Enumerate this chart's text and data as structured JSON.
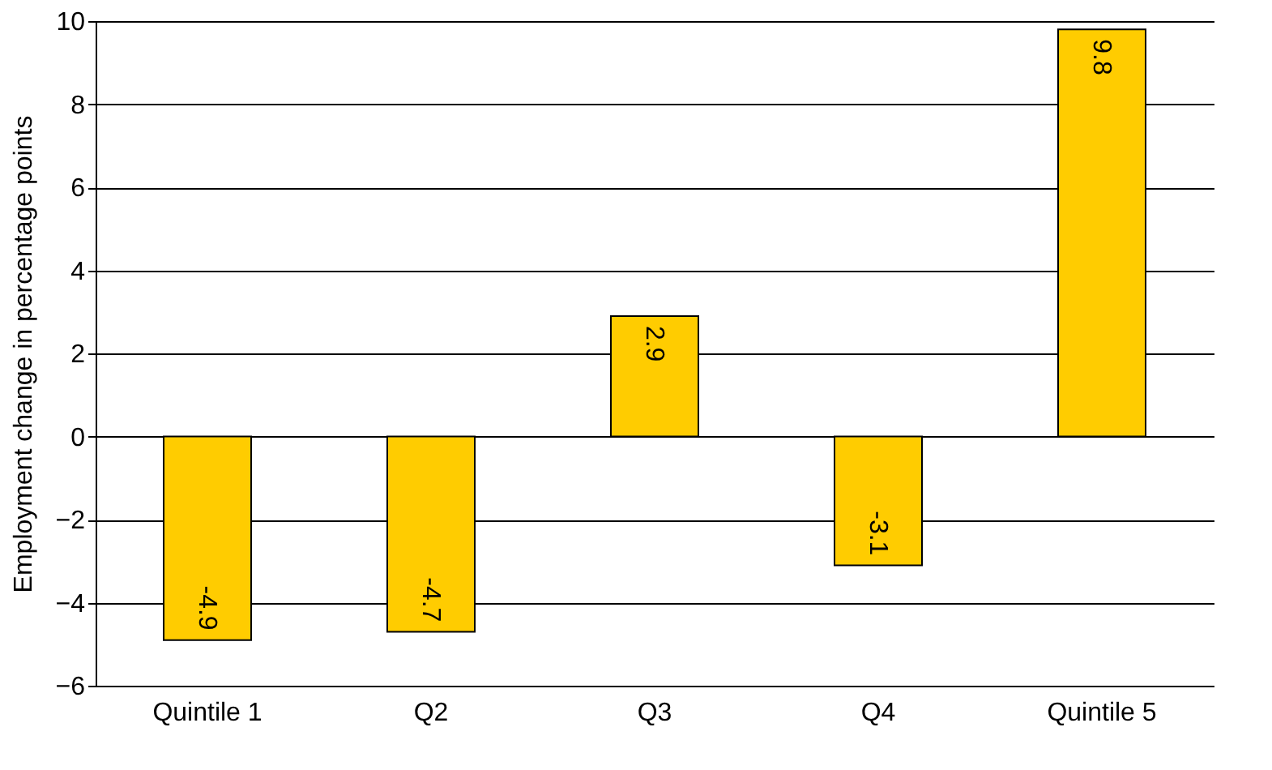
{
  "chart_data": {
    "type": "bar",
    "ylabel": "Employment change in percentage points",
    "categories": [
      "Quintile 1",
      "Q2",
      "Q3",
      "Q4",
      "Quintile 5"
    ],
    "values": [
      -4.9,
      -4.7,
      2.9,
      -3.1,
      9.8
    ],
    "color": "#ffcc00",
    "ylim": [
      -6,
      10
    ],
    "yticks": [
      -6,
      -4,
      -2,
      0,
      2,
      4,
      6,
      8,
      10
    ],
    "grid": "y",
    "data_labels": true
  }
}
